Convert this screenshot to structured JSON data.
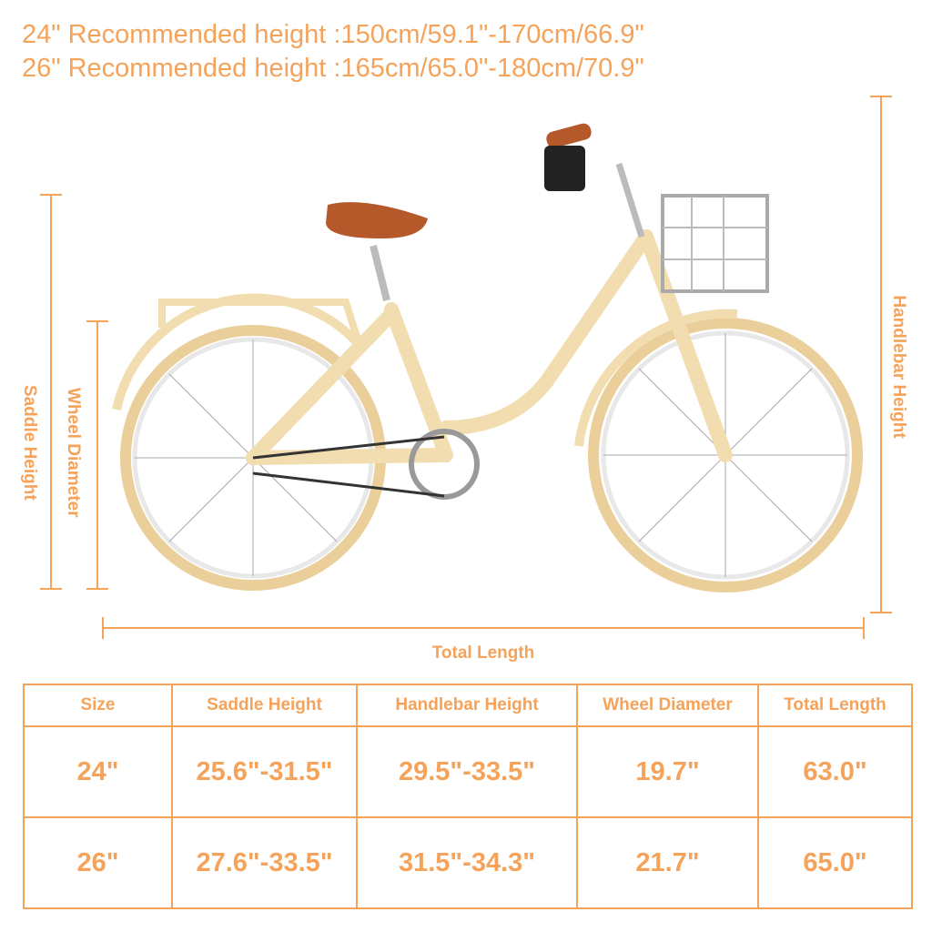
{
  "recommendations": [
    "24\" Recommended height :150cm/59.1\"-170cm/66.9\"",
    "26\" Recommended height :165cm/65.0\"-180cm/70.9\""
  ],
  "dimension_labels": {
    "saddle_height": "Saddle Height",
    "wheel_diameter": "Wheel Diameter",
    "handlebar_height": "Handlebar Height",
    "total_length": "Total Length"
  },
  "table": {
    "headers": [
      "Size",
      "Saddle Height",
      "Handlebar Height",
      "Wheel Diameter",
      "Total Length"
    ],
    "rows": [
      [
        "24\"",
        "25.6\"-31.5\"",
        "29.5\"-33.5\"",
        "19.7\"",
        "63.0\""
      ],
      [
        "26\"",
        "27.6\"-33.5\"",
        "31.5\"-34.3\"",
        "21.7\"",
        "65.0\""
      ]
    ]
  },
  "colors": {
    "accent": "#F5A35A",
    "frame": "#F1DDB0",
    "saddle": "#B5582A"
  }
}
